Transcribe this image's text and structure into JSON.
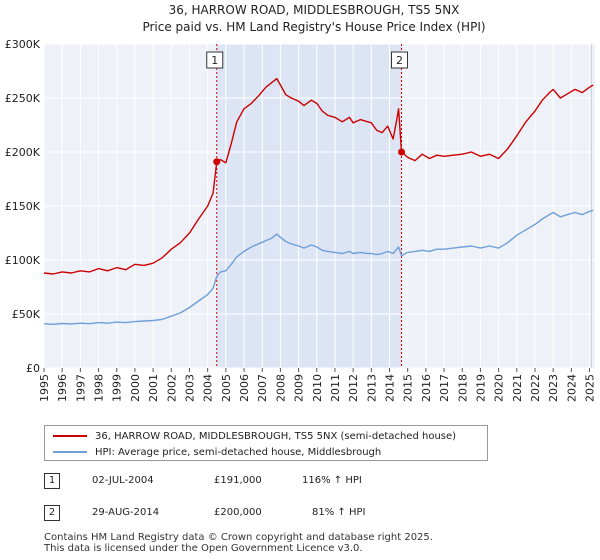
{
  "chart_data": {
    "type": "line",
    "title": "36, HARROW ROAD, MIDDLESBROUGH, TS5 5NX",
    "subtitle": "Price paid vs. HM Land Registry's House Price Index (HPI)",
    "xlabel": "",
    "ylabel": "",
    "xlim": [
      1995,
      2025.3
    ],
    "ylim": [
      0,
      300000
    ],
    "grid": true,
    "y_ticks": [
      {
        "value": 0,
        "label": "£0"
      },
      {
        "value": 50000,
        "label": "£50K"
      },
      {
        "value": 100000,
        "label": "£100K"
      },
      {
        "value": 150000,
        "label": "£150K"
      },
      {
        "value": 200000,
        "label": "£200K"
      },
      {
        "value": 250000,
        "label": "£250K"
      },
      {
        "value": 300000,
        "label": "£300K"
      }
    ],
    "x_ticks": [
      "1995",
      "1996",
      "1997",
      "1998",
      "1999",
      "2000",
      "2001",
      "2002",
      "2003",
      "2004",
      "2005",
      "2006",
      "2007",
      "2008",
      "2009",
      "2010",
      "2011",
      "2012",
      "2013",
      "2014",
      "2015",
      "2016",
      "2017",
      "2018",
      "2019",
      "2020",
      "2021",
      "2022",
      "2023",
      "2024",
      "2025"
    ],
    "shaded_region": [
      2004.5,
      2014.66
    ],
    "sale_markers": [
      {
        "label": "1",
        "x": 2004.5,
        "y": 191000
      },
      {
        "label": "2",
        "x": 2014.66,
        "y": 200000
      }
    ],
    "series": [
      {
        "name": "36, HARROW ROAD, MIDDLESBROUGH, TS5 5NX (semi-detached house)",
        "color": "#cc0000",
        "x": [
          1995,
          1995.5,
          1996,
          1996.5,
          1997,
          1997.5,
          1998,
          1998.5,
          1999,
          1999.5,
          2000,
          2000.5,
          2001,
          2001.5,
          2002,
          2002.5,
          2003,
          2003.5,
          2004,
          2004.3,
          2004.5,
          2004.7,
          2005,
          2005.3,
          2005.6,
          2006,
          2006.4,
          2006.8,
          2007.2,
          2007.5,
          2007.8,
          2008,
          2008.3,
          2008.6,
          2009,
          2009.3,
          2009.7,
          2010,
          2010.3,
          2010.6,
          2011,
          2011.4,
          2011.8,
          2012,
          2012.4,
          2012.8,
          2013,
          2013.3,
          2013.6,
          2013.9,
          2014.2,
          2014.4,
          2014.5,
          2014.66,
          2015,
          2015.4,
          2015.8,
          2016.2,
          2016.6,
          2017,
          2017.5,
          2018,
          2018.5,
          2019,
          2019.5,
          2020,
          2020.5,
          2021,
          2021.5,
          2022,
          2022.4,
          2022.8,
          2023,
          2023.4,
          2023.8,
          2024.2,
          2024.6,
          2025,
          2025.2
        ],
        "values": [
          88000,
          87000,
          89000,
          88000,
          90000,
          89000,
          92000,
          90000,
          93000,
          91000,
          96000,
          95000,
          97000,
          102000,
          110000,
          116000,
          125000,
          138000,
          150000,
          162000,
          191000,
          193000,
          190000,
          208000,
          228000,
          240000,
          245000,
          252000,
          260000,
          264000,
          268000,
          262000,
          253000,
          250000,
          247000,
          243000,
          248000,
          245000,
          238000,
          234000,
          232000,
          228000,
          232000,
          227000,
          230000,
          228000,
          227000,
          220000,
          218000,
          224000,
          212000,
          230000,
          240000,
          200000,
          195000,
          192000,
          198000,
          194000,
          197000,
          196000,
          197000,
          198000,
          200000,
          196000,
          198000,
          194000,
          203000,
          215000,
          228000,
          238000,
          248000,
          255000,
          258000,
          250000,
          254000,
          258000,
          255000,
          260000,
          262000
        ]
      },
      {
        "name": "HPI: Average price, semi-detached house, Middlesbrough",
        "color": "#6f9fd8",
        "x": [
          1995,
          1995.5,
          1996,
          1996.5,
          1997,
          1997.5,
          1998,
          1998.5,
          1999,
          1999.5,
          2000,
          2000.5,
          2001,
          2001.5,
          2002,
          2002.5,
          2003,
          2003.5,
          2004,
          2004.3,
          2004.5,
          2004.7,
          2005,
          2005.3,
          2005.6,
          2006,
          2006.4,
          2006.8,
          2007.2,
          2007.5,
          2007.8,
          2008,
          2008.3,
          2008.6,
          2009,
          2009.3,
          2009.7,
          2010,
          2010.3,
          2010.6,
          2011,
          2011.4,
          2011.8,
          2012,
          2012.4,
          2012.8,
          2013,
          2013.3,
          2013.6,
          2013.9,
          2014.2,
          2014.4,
          2014.5,
          2014.66,
          2015,
          2015.4,
          2015.8,
          2016.2,
          2016.6,
          2017,
          2017.5,
          2018,
          2018.5,
          2019,
          2019.5,
          2020,
          2020.5,
          2021,
          2021.5,
          2022,
          2022.4,
          2022.8,
          2023,
          2023.4,
          2023.8,
          2024.2,
          2024.6,
          2025,
          2025.2
        ],
        "values": [
          41000,
          40500,
          41200,
          40800,
          41500,
          41000,
          42000,
          41500,
          42500,
          42000,
          43000,
          43500,
          44000,
          45000,
          48000,
          51000,
          56000,
          62000,
          68000,
          74000,
          85000,
          89000,
          90000,
          96000,
          103000,
          108000,
          112000,
          115000,
          118000,
          120000,
          124000,
          121000,
          117000,
          115000,
          113000,
          111000,
          114000,
          112000,
          109000,
          108000,
          107000,
          106000,
          108000,
          106000,
          107000,
          106000,
          106000,
          105000,
          106000,
          108000,
          106000,
          110000,
          112000,
          104000,
          107000,
          108000,
          109000,
          108000,
          110000,
          110000,
          111000,
          112000,
          113000,
          111000,
          113000,
          111000,
          116000,
          123000,
          128000,
          133000,
          138000,
          142000,
          144000,
          140000,
          142000,
          144000,
          142000,
          145000,
          146000
        ]
      }
    ]
  },
  "legend": {
    "items": [
      {
        "label": "36, HARROW ROAD, MIDDLESBROUGH, TS5 5NX (semi-detached house)",
        "color": "#cc0000"
      },
      {
        "label": "HPI: Average price, semi-detached house, Middlesbrough",
        "color": "#6f9fd8"
      }
    ]
  },
  "transactions": [
    {
      "num": "1",
      "date": "02-JUL-2004",
      "price": "£191,000",
      "hpi": "116% ↑ HPI"
    },
    {
      "num": "2",
      "date": "29-AUG-2014",
      "price": "£200,000",
      "hpi": "81% ↑ HPI"
    }
  ],
  "footer": {
    "line1": "Contains HM Land Registry data © Crown copyright and database right 2025.",
    "line2": "This data is licensed under the Open Government Licence v3.0."
  }
}
